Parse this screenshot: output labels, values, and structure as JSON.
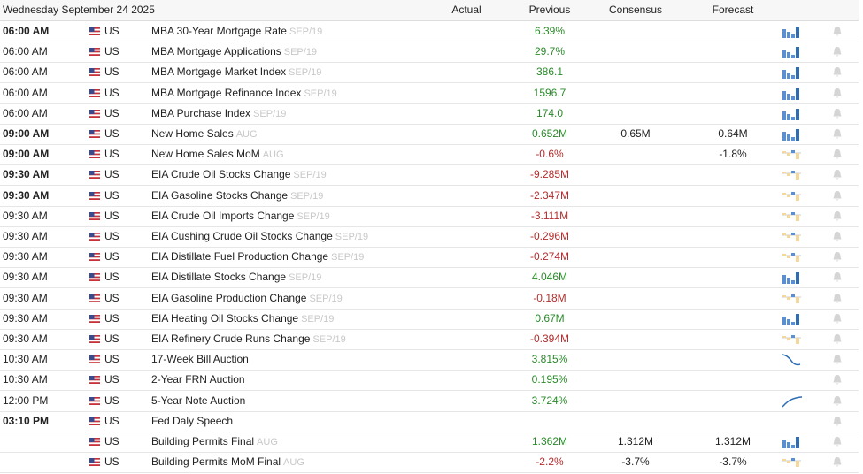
{
  "header": {
    "title": "Wednesday September 24 2025",
    "columns": {
      "actual": "Actual",
      "previous": "Previous",
      "consensus": "Consensus",
      "forecast": "Forecast"
    }
  },
  "table": {
    "rows": [
      {
        "time": "06:00 AM",
        "bold": true,
        "country": "US",
        "event": "MBA 30-Year Mortgage Rate",
        "period": "SEP/19",
        "previous": "6.39%",
        "chart": "bars"
      },
      {
        "time": "06:00 AM",
        "bold": false,
        "country": "US",
        "event": "MBA Mortgage Applications",
        "period": "SEP/19",
        "previous": "29.7%",
        "chart": "bars"
      },
      {
        "time": "06:00 AM",
        "bold": false,
        "country": "US",
        "event": "MBA Mortgage Market Index",
        "period": "SEP/19",
        "previous": "386.1",
        "chart": "bars"
      },
      {
        "time": "06:00 AM",
        "bold": false,
        "country": "US",
        "event": "MBA Mortgage Refinance Index",
        "period": "SEP/19",
        "previous": "1596.7",
        "chart": "bars"
      },
      {
        "time": "06:00 AM",
        "bold": false,
        "country": "US",
        "event": "MBA Purchase Index",
        "period": "SEP/19",
        "previous": "174.0",
        "chart": "bars"
      },
      {
        "time": "09:00 AM",
        "bold": true,
        "country": "US",
        "event": "New Home Sales",
        "period": "AUG",
        "previous": "0.652M",
        "consensus": "0.65M",
        "forecast": "0.64M",
        "chart": "bars"
      },
      {
        "time": "09:00 AM",
        "bold": true,
        "country": "US",
        "event": "New Home Sales MoM",
        "period": "AUG",
        "previous": "-0.6%",
        "forecast": "-1.8%",
        "chart": "diverging"
      },
      {
        "time": "09:30 AM",
        "bold": true,
        "country": "US",
        "event": "EIA Crude Oil Stocks Change",
        "period": "SEP/19",
        "previous": "-9.285M",
        "chart": "diverging"
      },
      {
        "time": "09:30 AM",
        "bold": true,
        "country": "US",
        "event": "EIA Gasoline Stocks Change",
        "period": "SEP/19",
        "previous": "-2.347M",
        "chart": "diverging"
      },
      {
        "time": "09:30 AM",
        "bold": false,
        "country": "US",
        "event": "EIA Crude Oil Imports Change",
        "period": "SEP/19",
        "previous": "-3.111M",
        "chart": "diverging"
      },
      {
        "time": "09:30 AM",
        "bold": false,
        "country": "US",
        "event": "EIA Cushing Crude Oil Stocks Change",
        "period": "SEP/19",
        "previous": "-0.296M",
        "chart": "diverging"
      },
      {
        "time": "09:30 AM",
        "bold": false,
        "country": "US",
        "event": "EIA Distillate Fuel Production Change",
        "period": "SEP/19",
        "previous": "-0.274M",
        "chart": "diverging"
      },
      {
        "time": "09:30 AM",
        "bold": false,
        "country": "US",
        "event": "EIA Distillate Stocks Change",
        "period": "SEP/19",
        "previous": "4.046M",
        "chart": "bars"
      },
      {
        "time": "09:30 AM",
        "bold": false,
        "country": "US",
        "event": "EIA Gasoline Production Change",
        "period": "SEP/19",
        "previous": "-0.18M",
        "chart": "diverging"
      },
      {
        "time": "09:30 AM",
        "bold": false,
        "country": "US",
        "event": "EIA Heating Oil Stocks Change",
        "period": "SEP/19",
        "previous": "0.67M",
        "chart": "bars"
      },
      {
        "time": "09:30 AM",
        "bold": false,
        "country": "US",
        "event": "EIA Refinery Crude Runs Change",
        "period": "SEP/19",
        "previous": "-0.394M",
        "chart": "diverging"
      },
      {
        "time": "10:30 AM",
        "bold": false,
        "country": "US",
        "event": "17-Week Bill Auction",
        "previous": "3.815%",
        "chart": "line-down"
      },
      {
        "time": "10:30 AM",
        "bold": false,
        "country": "US",
        "event": "2-Year FRN Auction",
        "previous": "0.195%"
      },
      {
        "time": "12:00 PM",
        "bold": false,
        "country": "US",
        "event": "5-Year Note Auction",
        "previous": "3.724%",
        "chart": "line-up"
      },
      {
        "time": "03:10 PM",
        "bold": true,
        "country": "US",
        "event": "Fed Daly Speech"
      },
      {
        "bold": false,
        "country": "US",
        "event": "Building Permits Final",
        "period": "AUG",
        "previous": "1.362M",
        "consensus": "1.312M",
        "forecast": "1.312M",
        "chart": "bars"
      },
      {
        "bold": false,
        "country": "US",
        "event": "Building Permits MoM Final",
        "period": "AUG",
        "previous": "-2.2%",
        "consensus": "-3.7%",
        "forecast": "-3.7%",
        "chart": "diverging"
      }
    ]
  }
}
